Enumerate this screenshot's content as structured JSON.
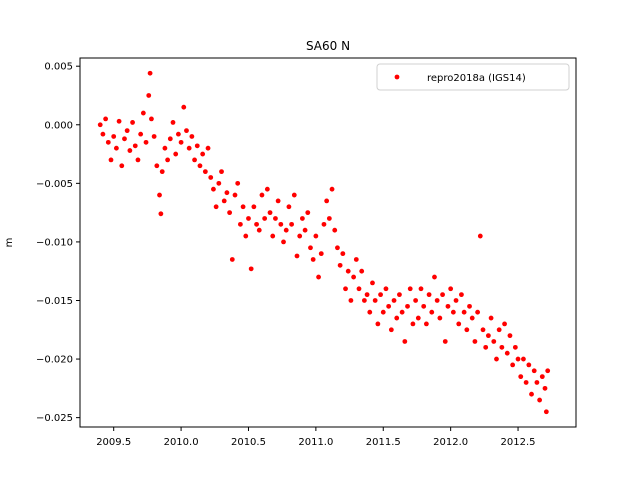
{
  "chart_data": {
    "type": "scatter",
    "title": "SA60 N",
    "xlabel": "",
    "ylabel": "m",
    "xlim": [
      2009.25,
      2012.93
    ],
    "ylim": [
      -0.0258,
      0.0057
    ],
    "x_ticks": [
      2009.5,
      2010.0,
      2010.5,
      2011.0,
      2011.5,
      2012.0,
      2012.5
    ],
    "x_tick_labels": [
      "2009.5",
      "2010.0",
      "2010.5",
      "2011.0",
      "2011.5",
      "2012.0",
      "2012.5"
    ],
    "y_ticks": [
      0.005,
      0.0,
      -0.005,
      -0.01,
      -0.015,
      -0.02,
      -0.025
    ],
    "y_tick_labels": [
      "0.005",
      "0.000",
      "−0.005",
      "−0.010",
      "−0.015",
      "−0.020",
      "−0.025"
    ],
    "grid": false,
    "legend": {
      "position": "top-right",
      "entries": [
        "repro2018a (IGS14)"
      ]
    },
    "series": [
      {
        "name": "repro2018a (IGS14)",
        "color": "#ff0000",
        "marker": "circle",
        "points": [
          [
            2009.4,
            0.0
          ],
          [
            2009.42,
            -0.0008
          ],
          [
            2009.44,
            0.0005
          ],
          [
            2009.46,
            -0.0015
          ],
          [
            2009.48,
            -0.003
          ],
          [
            2009.5,
            -0.001
          ],
          [
            2009.52,
            -0.002
          ],
          [
            2009.54,
            0.0003
          ],
          [
            2009.56,
            -0.0035
          ],
          [
            2009.58,
            -0.0012
          ],
          [
            2009.6,
            -0.0005
          ],
          [
            2009.62,
            -0.0022
          ],
          [
            2009.64,
            0.0002
          ],
          [
            2009.66,
            -0.0018
          ],
          [
            2009.68,
            -0.003
          ],
          [
            2009.7,
            -0.0008
          ],
          [
            2009.72,
            0.001
          ],
          [
            2009.74,
            -0.0015
          ],
          [
            2009.76,
            0.0025
          ],
          [
            2009.77,
            0.0044
          ],
          [
            2009.78,
            0.0005
          ],
          [
            2009.8,
            -0.001
          ],
          [
            2009.82,
            -0.0035
          ],
          [
            2009.84,
            -0.006
          ],
          [
            2009.85,
            -0.0076
          ],
          [
            2009.86,
            -0.004
          ],
          [
            2009.88,
            -0.002
          ],
          [
            2009.9,
            -0.003
          ],
          [
            2009.92,
            -0.0012
          ],
          [
            2009.94,
            0.0002
          ],
          [
            2009.96,
            -0.0025
          ],
          [
            2009.98,
            -0.0008
          ],
          [
            2010.0,
            -0.0015
          ],
          [
            2010.02,
            0.0015
          ],
          [
            2010.04,
            -0.0005
          ],
          [
            2010.06,
            -0.002
          ],
          [
            2010.08,
            -0.001
          ],
          [
            2010.1,
            -0.003
          ],
          [
            2010.12,
            -0.0018
          ],
          [
            2010.14,
            -0.0035
          ],
          [
            2010.16,
            -0.0025
          ],
          [
            2010.18,
            -0.004
          ],
          [
            2010.2,
            -0.002
          ],
          [
            2010.22,
            -0.0045
          ],
          [
            2010.24,
            -0.0055
          ],
          [
            2010.26,
            -0.007
          ],
          [
            2010.28,
            -0.005
          ],
          [
            2010.3,
            -0.004
          ],
          [
            2010.32,
            -0.0065
          ],
          [
            2010.34,
            -0.0058
          ],
          [
            2010.36,
            -0.0075
          ],
          [
            2010.38,
            -0.0115
          ],
          [
            2010.4,
            -0.006
          ],
          [
            2010.42,
            -0.005
          ],
          [
            2010.44,
            -0.0085
          ],
          [
            2010.46,
            -0.007
          ],
          [
            2010.48,
            -0.0095
          ],
          [
            2010.5,
            -0.008
          ],
          [
            2010.52,
            -0.0123
          ],
          [
            2010.54,
            -0.007
          ],
          [
            2010.56,
            -0.0085
          ],
          [
            2010.58,
            -0.009
          ],
          [
            2010.6,
            -0.006
          ],
          [
            2010.62,
            -0.008
          ],
          [
            2010.64,
            -0.0055
          ],
          [
            2010.66,
            -0.0075
          ],
          [
            2010.68,
            -0.0095
          ],
          [
            2010.7,
            -0.008
          ],
          [
            2010.72,
            -0.0065
          ],
          [
            2010.74,
            -0.0085
          ],
          [
            2010.76,
            -0.01
          ],
          [
            2010.78,
            -0.009
          ],
          [
            2010.8,
            -0.007
          ],
          [
            2010.82,
            -0.0085
          ],
          [
            2010.84,
            -0.006
          ],
          [
            2010.86,
            -0.0112
          ],
          [
            2010.88,
            -0.0095
          ],
          [
            2010.9,
            -0.008
          ],
          [
            2010.92,
            -0.009
          ],
          [
            2010.94,
            -0.0075
          ],
          [
            2010.96,
            -0.0105
          ],
          [
            2010.98,
            -0.0115
          ],
          [
            2011.0,
            -0.0095
          ],
          [
            2011.02,
            -0.013
          ],
          [
            2011.04,
            -0.011
          ],
          [
            2011.06,
            -0.0085
          ],
          [
            2011.08,
            -0.0065
          ],
          [
            2011.1,
            -0.008
          ],
          [
            2011.12,
            -0.0055
          ],
          [
            2011.14,
            -0.009
          ],
          [
            2011.16,
            -0.0105
          ],
          [
            2011.18,
            -0.012
          ],
          [
            2011.2,
            -0.011
          ],
          [
            2011.22,
            -0.014
          ],
          [
            2011.24,
            -0.0125
          ],
          [
            2011.26,
            -0.015
          ],
          [
            2011.28,
            -0.013
          ],
          [
            2011.3,
            -0.0115
          ],
          [
            2011.32,
            -0.014
          ],
          [
            2011.34,
            -0.0125
          ],
          [
            2011.36,
            -0.015
          ],
          [
            2011.38,
            -0.0145
          ],
          [
            2011.4,
            -0.016
          ],
          [
            2011.42,
            -0.0135
          ],
          [
            2011.44,
            -0.015
          ],
          [
            2011.46,
            -0.017
          ],
          [
            2011.48,
            -0.0145
          ],
          [
            2011.5,
            -0.016
          ],
          [
            2011.52,
            -0.014
          ],
          [
            2011.54,
            -0.0155
          ],
          [
            2011.56,
            -0.0175
          ],
          [
            2011.58,
            -0.015
          ],
          [
            2011.6,
            -0.0165
          ],
          [
            2011.62,
            -0.0145
          ],
          [
            2011.64,
            -0.016
          ],
          [
            2011.66,
            -0.0185
          ],
          [
            2011.68,
            -0.0155
          ],
          [
            2011.7,
            -0.014
          ],
          [
            2011.72,
            -0.017
          ],
          [
            2011.74,
            -0.015
          ],
          [
            2011.76,
            -0.0165
          ],
          [
            2011.78,
            -0.014
          ],
          [
            2011.8,
            -0.0155
          ],
          [
            2011.82,
            -0.017
          ],
          [
            2011.84,
            -0.0145
          ],
          [
            2011.86,
            -0.016
          ],
          [
            2011.88,
            -0.013
          ],
          [
            2011.9,
            -0.015
          ],
          [
            2011.92,
            -0.0165
          ],
          [
            2011.94,
            -0.0145
          ],
          [
            2011.96,
            -0.0185
          ],
          [
            2011.98,
            -0.0155
          ],
          [
            2012.0,
            -0.014
          ],
          [
            2012.02,
            -0.016
          ],
          [
            2012.04,
            -0.015
          ],
          [
            2012.06,
            -0.017
          ],
          [
            2012.08,
            -0.0145
          ],
          [
            2012.1,
            -0.016
          ],
          [
            2012.12,
            -0.0175
          ],
          [
            2012.14,
            -0.0155
          ],
          [
            2012.16,
            -0.0165
          ],
          [
            2012.18,
            -0.0185
          ],
          [
            2012.2,
            -0.016
          ],
          [
            2012.22,
            -0.0095
          ],
          [
            2012.24,
            -0.0175
          ],
          [
            2012.26,
            -0.019
          ],
          [
            2012.28,
            -0.018
          ],
          [
            2012.3,
            -0.0165
          ],
          [
            2012.32,
            -0.0185
          ],
          [
            2012.34,
            -0.02
          ],
          [
            2012.36,
            -0.0175
          ],
          [
            2012.38,
            -0.019
          ],
          [
            2012.4,
            -0.017
          ],
          [
            2012.42,
            -0.0195
          ],
          [
            2012.44,
            -0.018
          ],
          [
            2012.46,
            -0.0205
          ],
          [
            2012.48,
            -0.019
          ],
          [
            2012.5,
            -0.02
          ],
          [
            2012.52,
            -0.0215
          ],
          [
            2012.54,
            -0.02
          ],
          [
            2012.56,
            -0.022
          ],
          [
            2012.58,
            -0.0205
          ],
          [
            2012.6,
            -0.023
          ],
          [
            2012.62,
            -0.021
          ],
          [
            2012.64,
            -0.022
          ],
          [
            2012.66,
            -0.0235
          ],
          [
            2012.68,
            -0.0215
          ],
          [
            2012.7,
            -0.0225
          ],
          [
            2012.71,
            -0.0245
          ],
          [
            2012.72,
            -0.021
          ]
        ]
      }
    ]
  }
}
